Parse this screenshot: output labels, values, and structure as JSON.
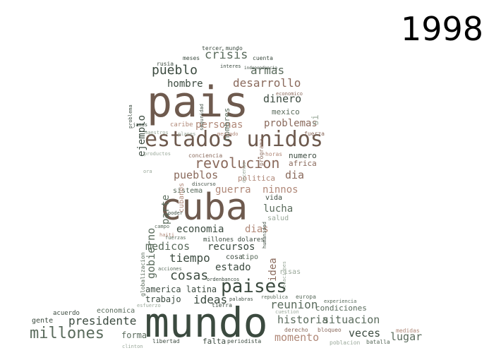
{
  "year": "1998",
  "palette": [
    "#3b4a3f",
    "#6e5a4e",
    "#8a6a5c",
    "#b08878",
    "#5a6b5c",
    "#9aa89a"
  ],
  "words": [
    "mundo",
    "pais",
    "cuba",
    "estados unidos",
    "paises",
    "millones",
    "revolucion",
    "pueblo",
    "crisis",
    "armas",
    "desarrollo",
    "hombre",
    "dinero",
    "personas",
    "problemas",
    "ejemplo",
    "gobierno",
    "pueblos",
    "guerra",
    "ninnos",
    "dia",
    "lucha",
    "economia",
    "dias",
    "recursos",
    "medicos",
    "tiempo",
    "estado",
    "cosas",
    "ideas",
    "reunion",
    "presidente",
    "historia",
    "situacion",
    "veces",
    "lugar",
    "momento",
    "america latina",
    "trabajo",
    "condiciones",
    "forma",
    "falta",
    "idea",
    "parte",
    "politica",
    "africa",
    "numero",
    "mexico",
    "si",
    "hombres",
    "vida",
    "salud",
    "sistema",
    "cubanos",
    "cosa",
    "tipo",
    "risas",
    "millones dolares",
    "gente",
    "economica",
    "acuerdo",
    "libertad",
    "periodista",
    "derecho",
    "bloqueo",
    "medidas",
    "poblacion",
    "batalla",
    "europa",
    "republica",
    "experiencia",
    "tierra",
    "palabras",
    "cuestion",
    "esfuerzo",
    "ordenbancos",
    "acciones",
    "fuerzas",
    "haiti",
    "campo",
    "poder",
    "globalizacion",
    "relaciones",
    "humanidad",
    "discurso",
    "horas",
    "conciencia",
    "productos",
    "decenas",
    "mercado",
    "planes",
    "maestros",
    "fuerza",
    "programa",
    "caribe",
    "jamas",
    "problema",
    "seguridad",
    "interes",
    "independencia",
    "rusia",
    "meses",
    "cuenta",
    "tercer mundo",
    "clinton",
    "ora",
    "economico"
  ]
}
